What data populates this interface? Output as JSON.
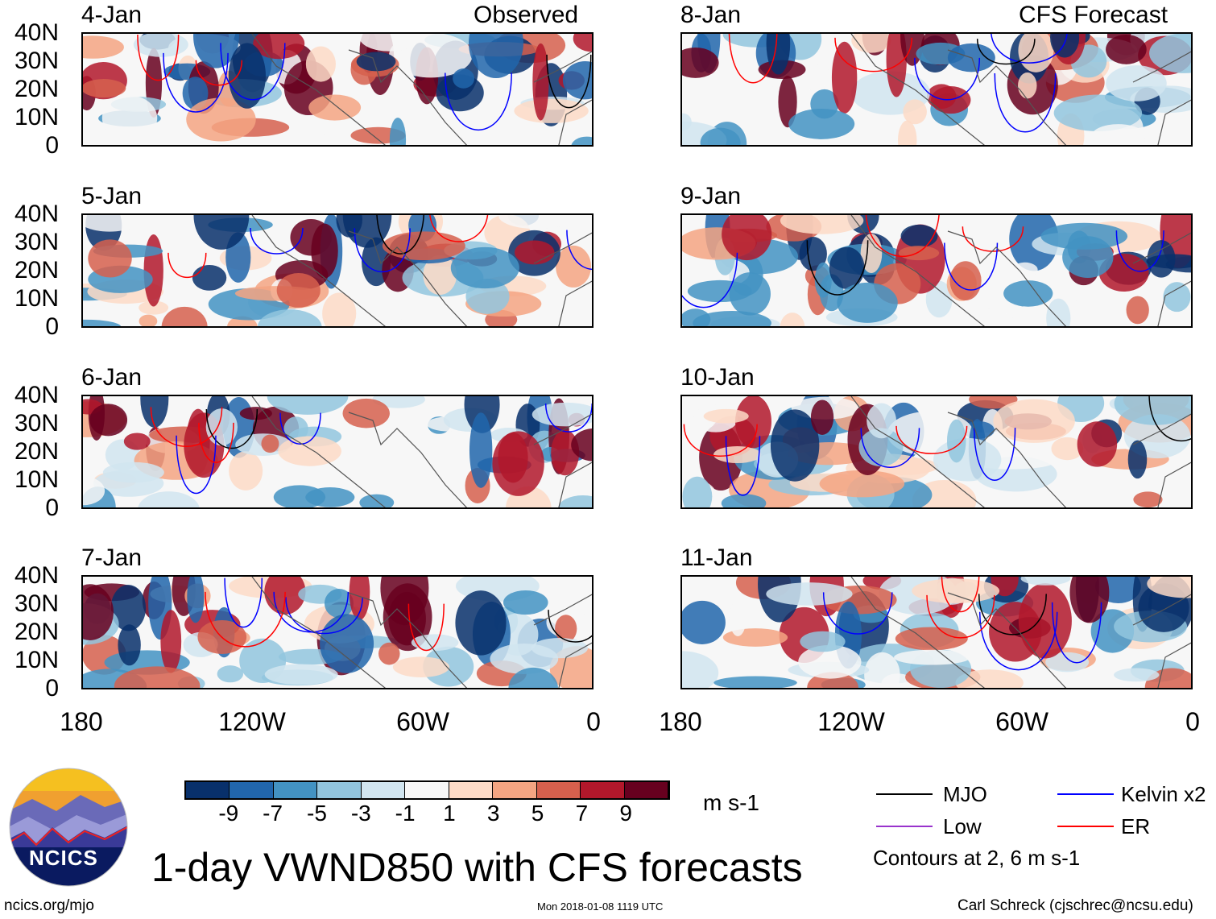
{
  "title": "1-day VWND850 with CFS forecasts",
  "columns": {
    "left_label": "Observed",
    "right_label": "CFS Forecast"
  },
  "panels": [
    {
      "date": "4-Jan",
      "source": "observed"
    },
    {
      "date": "5-Jan",
      "source": "observed"
    },
    {
      "date": "6-Jan",
      "source": "observed"
    },
    {
      "date": "7-Jan",
      "source": "observed"
    },
    {
      "date": "8-Jan",
      "source": "forecast"
    },
    {
      "date": "9-Jan",
      "source": "forecast"
    },
    {
      "date": "10-Jan",
      "source": "forecast"
    },
    {
      "date": "11-Jan",
      "source": "forecast"
    }
  ],
  "lat_labels": [
    "40N",
    "30N",
    "20N",
    "10N",
    "0"
  ],
  "lon_labels": [
    "180",
    "120W",
    "60W",
    "0"
  ],
  "colorbar": {
    "labels": [
      "-9",
      "-7",
      "-5",
      "-3",
      "-1",
      "1",
      "3",
      "5",
      "7",
      "9"
    ],
    "colors": [
      "#08306b",
      "#2166ac",
      "#4393c3",
      "#92c5de",
      "#d1e5f0",
      "#f7f7f7",
      "#fddbc7",
      "#f4a582",
      "#d6604d",
      "#b2182b",
      "#67001f"
    ],
    "units": "m s-1"
  },
  "legend": {
    "items": [
      {
        "label": "MJO",
        "color": "#000000"
      },
      {
        "label": "Kelvin x2",
        "color": "#0000ff"
      },
      {
        "label": "Low",
        "color": "#9933cc"
      },
      {
        "label": "ER",
        "color": "#ff0000"
      }
    ],
    "note": "Contours at 2, 6 m s-1"
  },
  "logo": {
    "text": "NCICS"
  },
  "footer": {
    "url": "ncics.org/mjo",
    "timestamp": "Mon 2018-01-08 1119 UTC",
    "author": "Carl Schreck (cjschrec@ncsu.edu)"
  }
}
